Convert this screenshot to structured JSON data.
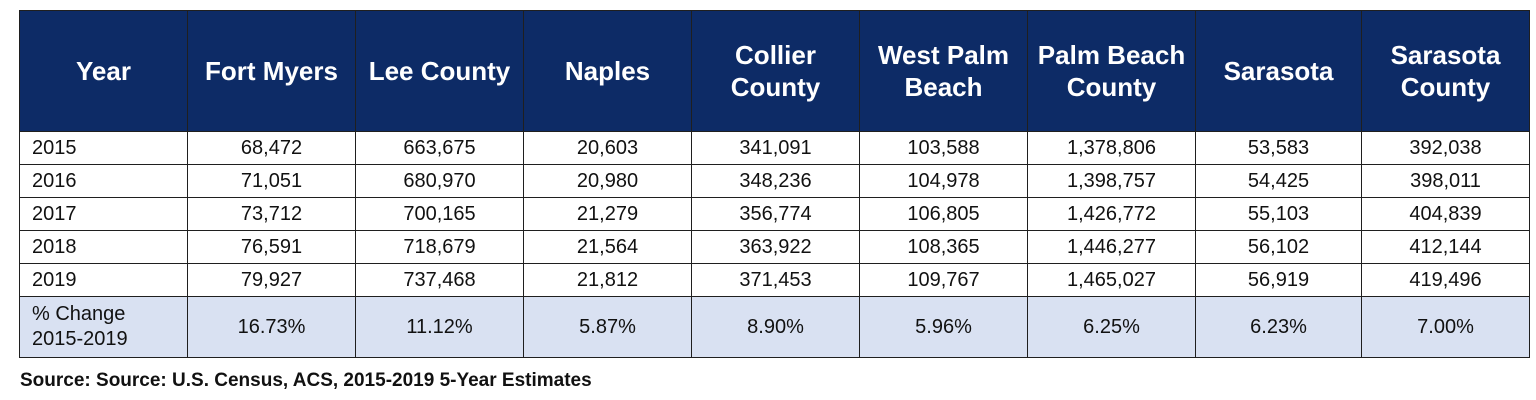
{
  "table": {
    "headers": [
      "Year",
      "Fort Myers",
      "Lee County",
      "Naples",
      "Collier County",
      "West Palm Beach",
      "Palm Beach County",
      "Sarasota",
      "Sarasota County"
    ],
    "rows": [
      [
        "2015",
        "68,472",
        "663,675",
        "20,603",
        "341,091",
        "103,588",
        "1,378,806",
        "53,583",
        "392,038"
      ],
      [
        "2016",
        "71,051",
        "680,970",
        "20,980",
        "348,236",
        "104,978",
        "1,398,757",
        "54,425",
        "398,011"
      ],
      [
        "2017",
        "73,712",
        "700,165",
        "21,279",
        "356,774",
        "106,805",
        "1,426,772",
        "55,103",
        "404,839"
      ],
      [
        "2018",
        "76,591",
        "718,679",
        "21,564",
        "363,922",
        "108,365",
        "1,446,277",
        "56,102",
        "412,144"
      ],
      [
        "2019",
        "79,927",
        "737,468",
        "21,812",
        "371,453",
        "109,767",
        "1,465,027",
        "56,919",
        "419,496"
      ]
    ],
    "change_row": [
      "% Change\n2015-2019",
      "16.73%",
      "11.12%",
      "5.87%",
      "8.90%",
      "5.96%",
      "6.25%",
      "6.23%",
      "7.00%"
    ]
  },
  "source": "Source: Source: U.S. Census, ACS, 2015-2019 5-Year Estimates",
  "colors": {
    "header_bg": "#0d2b66",
    "header_text": "#ffffff",
    "change_row_bg": "#d9e1f2"
  }
}
